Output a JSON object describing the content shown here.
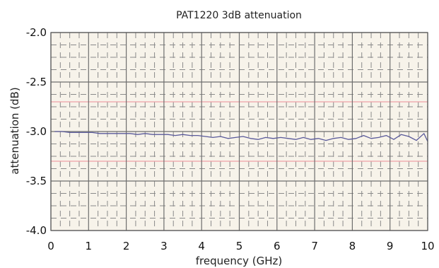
{
  "chart_data": {
    "type": "line",
    "title": "PAT1220 3dB attenuation",
    "xlabel": "frequency (GHz)",
    "ylabel": "attenuation (dB)",
    "xlim": [
      0,
      10
    ],
    "ylim": [
      -4.0,
      -2.0
    ],
    "x_ticks": [
      0,
      1,
      2,
      3,
      4,
      5,
      6,
      7,
      8,
      9,
      10
    ],
    "x_tick_labels": [
      "0",
      "1",
      "2",
      "3",
      "4",
      "5",
      "6",
      "7",
      "8",
      "9",
      "10"
    ],
    "y_ticks": [
      -2.0,
      -2.5,
      -3.0,
      -3.5,
      -4.0
    ],
    "y_tick_labels": [
      "-2.0",
      "-2.5",
      "-3.0",
      "-3.5",
      "-4.0"
    ],
    "grid": true,
    "colors": {
      "plot_background": "#f7f3ea",
      "major_grid": "#6e6e6e",
      "minor_grid": "#8a8a8a",
      "reference_lines": "#f0a0a8",
      "series": "#5a5a9a"
    },
    "reference_y": [
      -2.7,
      -3.3
    ],
    "series": [
      {
        "name": "",
        "x": [
          0.1,
          0.3,
          0.5,
          0.7,
          0.9,
          1.1,
          1.3,
          1.5,
          1.7,
          1.9,
          2.1,
          2.3,
          2.5,
          2.7,
          2.9,
          3.1,
          3.3,
          3.5,
          3.7,
          3.9,
          4.1,
          4.3,
          4.5,
          4.7,
          4.9,
          5.1,
          5.3,
          5.5,
          5.7,
          5.9,
          6.1,
          6.3,
          6.5,
          6.7,
          6.9,
          7.1,
          7.3,
          7.5,
          7.7,
          7.9,
          8.1,
          8.3,
          8.5,
          8.7,
          8.9,
          9.1,
          9.3,
          9.5,
          9.7,
          9.9,
          10.0
        ],
        "y": [
          -3.0,
          -3.0,
          -3.01,
          -3.01,
          -3.01,
          -3.01,
          -3.02,
          -3.02,
          -3.02,
          -3.02,
          -3.02,
          -3.03,
          -3.02,
          -3.03,
          -3.03,
          -3.03,
          -3.04,
          -3.03,
          -3.04,
          -3.04,
          -3.05,
          -3.06,
          -3.05,
          -3.07,
          -3.06,
          -3.05,
          -3.07,
          -3.08,
          -3.06,
          -3.07,
          -3.06,
          -3.07,
          -3.08,
          -3.06,
          -3.08,
          -3.07,
          -3.09,
          -3.07,
          -3.06,
          -3.08,
          -3.07,
          -3.04,
          -3.07,
          -3.06,
          -3.04,
          -3.08,
          -3.03,
          -3.05,
          -3.09,
          -3.02,
          -3.1
        ]
      }
    ]
  }
}
